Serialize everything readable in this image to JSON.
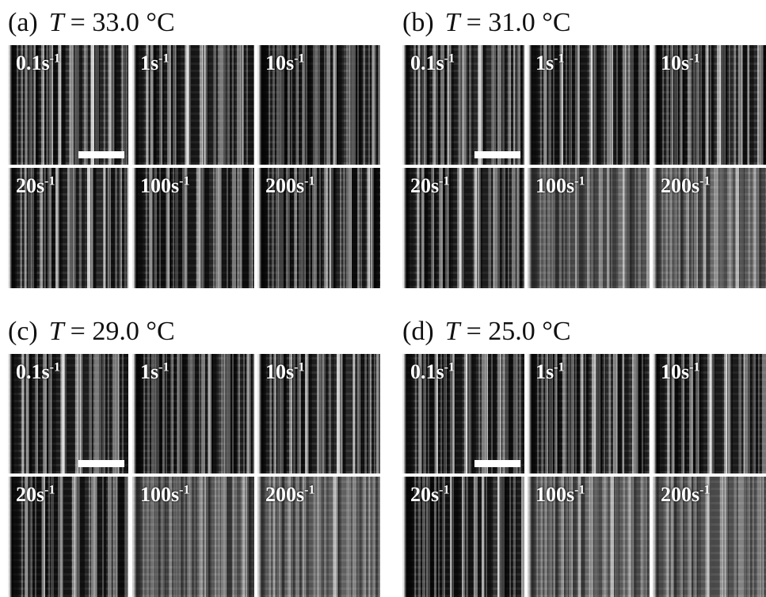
{
  "panels": [
    {
      "label": "(a)",
      "variable": "T",
      "condition": "= 33.0 °C",
      "tiles": [
        {
          "rate": "0.1s",
          "exponent": "-1"
        },
        {
          "rate": "1s",
          "exponent": "-1"
        },
        {
          "rate": "10s",
          "exponent": "-1"
        },
        {
          "rate": "20s",
          "exponent": "-1"
        },
        {
          "rate": "100s",
          "exponent": "-1"
        },
        {
          "rate": "200s",
          "exponent": "-1"
        }
      ]
    },
    {
      "label": "(b)",
      "variable": "T",
      "condition": "= 31.0 °C",
      "tiles": [
        {
          "rate": "0.1s",
          "exponent": "-1"
        },
        {
          "rate": "1s",
          "exponent": "-1"
        },
        {
          "rate": "10s",
          "exponent": "-1"
        },
        {
          "rate": "20s",
          "exponent": "-1"
        },
        {
          "rate": "100s",
          "exponent": "-1"
        },
        {
          "rate": "200s",
          "exponent": "-1"
        }
      ]
    },
    {
      "label": "(c)",
      "variable": "T",
      "condition": "= 29.0 °C",
      "tiles": [
        {
          "rate": "0.1s",
          "exponent": "-1"
        },
        {
          "rate": "1s",
          "exponent": "-1"
        },
        {
          "rate": "10s",
          "exponent": "-1"
        },
        {
          "rate": "20s",
          "exponent": "-1"
        },
        {
          "rate": "100s",
          "exponent": "-1"
        },
        {
          "rate": "200s",
          "exponent": "-1"
        }
      ]
    },
    {
      "label": "(d)",
      "variable": "T",
      "condition": "= 25.0 °C",
      "tiles": [
        {
          "rate": "0.1s",
          "exponent": "-1"
        },
        {
          "rate": "1s",
          "exponent": "-1"
        },
        {
          "rate": "10s",
          "exponent": "-1"
        },
        {
          "rate": "20s",
          "exponent": "-1"
        },
        {
          "rate": "100s",
          "exponent": "-1"
        },
        {
          "rate": "200s",
          "exponent": "-1"
        }
      ]
    }
  ]
}
